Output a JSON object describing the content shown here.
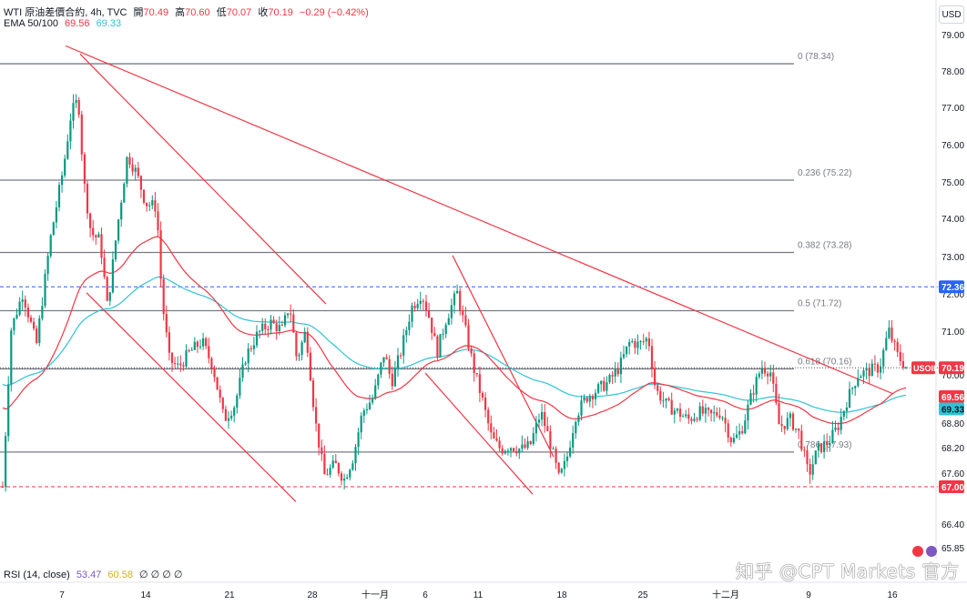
{
  "header": {
    "symbol_desc": "WTI 原油差價合約, 4h, TVC",
    "ohlc": [
      {
        "label": "開",
        "value": "70.49"
      },
      {
        "label": "高",
        "value": "70.60"
      },
      {
        "label": "低",
        "value": "70.07"
      },
      {
        "label": "收",
        "value": "70.19"
      }
    ],
    "change": "−0.29 (−0.42%)"
  },
  "ema_legend": {
    "label": "EMA 50/100",
    "ema50": "69.56",
    "ema100": "69.33"
  },
  "rsi_legend": {
    "label": "RSI (14, close)",
    "v1": "53.47",
    "v2": "60.58",
    "rest": "∅ ∅ ∅ ∅"
  },
  "currency_button": "USD",
  "watermark": "知乎 @CPT Markets 官方",
  "colors": {
    "up": "#089981",
    "down": "#f23645",
    "ema50": "#f23645",
    "ema100": "#2ec4d6",
    "fib": "#787b86",
    "trend": "#f23645"
  },
  "chart_data": {
    "type": "candlestick",
    "symbol": "USOIL",
    "ylim": [
      65.85,
      79.35
    ],
    "y_ticks": [
      "79.00",
      "78.00",
      "77.00",
      "76.00",
      "75.00",
      "74.00",
      "73.00",
      "72.00",
      "71.00",
      "70.00",
      "68.80",
      "68.20",
      "67.60",
      "66.40",
      "65.85"
    ],
    "x_ticks": [
      "7",
      "14",
      "21",
      "28",
      "十一月",
      "6",
      "11",
      "18",
      "25",
      "十二月",
      "9",
      "16"
    ],
    "fib_levels": [
      {
        "label": "0 (78.34)",
        "value": 78.34
      },
      {
        "label": "0.236 (75.22)",
        "value": 75.22
      },
      {
        "label": "0.382 (73.28)",
        "value": 73.28
      },
      {
        "label": "0.5 (71.72)",
        "value": 71.72
      },
      {
        "label": "0.618 (70.16)",
        "value": 70.16
      },
      {
        "label": "0.786 (67.93)",
        "value": 67.93
      }
    ],
    "dashed_levels": [
      {
        "value": 72.36,
        "label": "72.36",
        "color": "#2962ff"
      },
      {
        "value": 67.0,
        "label": "67.00",
        "color": "#f23645"
      }
    ],
    "price_badges": [
      {
        "value": 70.19,
        "label": "USOIL",
        "price": "70.19"
      },
      {
        "value": 69.56,
        "price": "69.56"
      },
      {
        "value": 69.33,
        "price": "69.33"
      }
    ],
    "trendlines": [
      {
        "x1": 72,
        "y1": 78.82,
        "x2": 980,
        "y2": 69.5
      },
      {
        "x1": 88,
        "y1": 78.6,
        "x2": 358,
        "y2": 71.9
      },
      {
        "x1": 95,
        "y1": 72.2,
        "x2": 325,
        "y2": 66.6
      },
      {
        "x1": 497,
        "y1": 73.2,
        "x2": 608,
        "y2": 67.8
      },
      {
        "x1": 467,
        "y1": 70.05,
        "x2": 585,
        "y2": 66.8
      }
    ],
    "anchors": [
      [
        3,
        67
      ],
      [
        12,
        71.2
      ],
      [
        25,
        72.2
      ],
      [
        40,
        70.8
      ],
      [
        55,
        73.6
      ],
      [
        70,
        75.6
      ],
      [
        78,
        77
      ],
      [
        86,
        77.4
      ],
      [
        92,
        75.2
      ],
      [
        100,
        73.8
      ],
      [
        110,
        73.6
      ],
      [
        118,
        71.8
      ],
      [
        128,
        73.8
      ],
      [
        140,
        75.9
      ],
      [
        150,
        75.4
      ],
      [
        160,
        74.6
      ],
      [
        172,
        74.5
      ],
      [
        178,
        72
      ],
      [
        186,
        70.4
      ],
      [
        196,
        70.2
      ],
      [
        208,
        70.6
      ],
      [
        222,
        70.9
      ],
      [
        234,
        70.2
      ],
      [
        246,
        68.8
      ],
      [
        258,
        69.2
      ],
      [
        270,
        70.5
      ],
      [
        283,
        71.1
      ],
      [
        297,
        71.4
      ],
      [
        310,
        71.2
      ],
      [
        318,
        71.9
      ],
      [
        326,
        70.4
      ],
      [
        336,
        71.2
      ],
      [
        346,
        68.8
      ],
      [
        356,
        67.3
      ],
      [
        368,
        67.6
      ],
      [
        378,
        67.2
      ],
      [
        388,
        67.8
      ],
      [
        398,
        69
      ],
      [
        410,
        69.4
      ],
      [
        422,
        70.6
      ],
      [
        430,
        69.8
      ],
      [
        440,
        70.6
      ],
      [
        452,
        71.8
      ],
      [
        463,
        72.2
      ],
      [
        472,
        71.5
      ],
      [
        480,
        70.6
      ],
      [
        490,
        71.5
      ],
      [
        502,
        72.2
      ],
      [
        512,
        71.1
      ],
      [
        520,
        70.2
      ],
      [
        530,
        69.3
      ],
      [
        540,
        68.3
      ],
      [
        550,
        68
      ],
      [
        560,
        68.1
      ],
      [
        572,
        68
      ],
      [
        582,
        68.1
      ],
      [
        594,
        69
      ],
      [
        604,
        68.2
      ],
      [
        614,
        67.2
      ],
      [
        622,
        67.7
      ],
      [
        632,
        68.9
      ],
      [
        644,
        69.4
      ],
      [
        656,
        69.6
      ],
      [
        668,
        69.8
      ],
      [
        680,
        70.2
      ],
      [
        692,
        70.9
      ],
      [
        702,
        70.8
      ],
      [
        712,
        71
      ],
      [
        720,
        69.6
      ],
      [
        732,
        69.2
      ],
      [
        744,
        69
      ],
      [
        756,
        68.8
      ],
      [
        768,
        69
      ],
      [
        780,
        68.9
      ],
      [
        792,
        69
      ],
      [
        804,
        68.2
      ],
      [
        814,
        68.5
      ],
      [
        826,
        69.5
      ],
      [
        836,
        70.2
      ],
      [
        846,
        70.1
      ],
      [
        856,
        68.6
      ],
      [
        868,
        68.8
      ],
      [
        878,
        68.4
      ],
      [
        888,
        67.3
      ],
      [
        898,
        68
      ],
      [
        910,
        68.2
      ],
      [
        920,
        68.6
      ],
      [
        930,
        69.3
      ],
      [
        942,
        70
      ],
      [
        954,
        70.1
      ],
      [
        966,
        70.2
      ],
      [
        976,
        71.2
      ],
      [
        986,
        70.5
      ],
      [
        996,
        70.19
      ]
    ]
  }
}
